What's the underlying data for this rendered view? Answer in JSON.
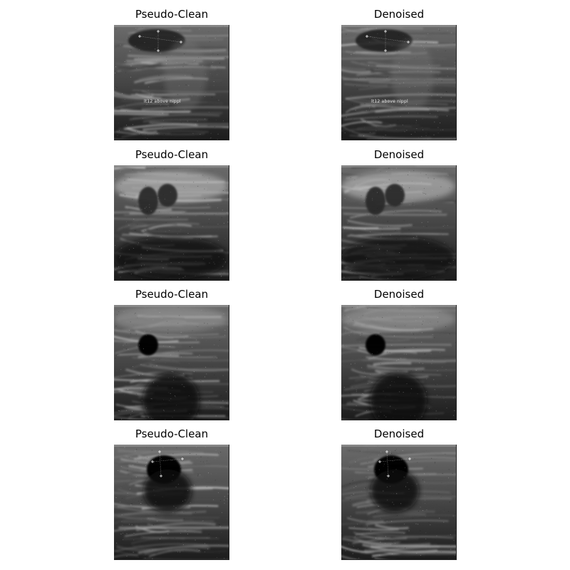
{
  "figure": {
    "panels": [
      {
        "title": "Pseudo-Clean",
        "row": 0,
        "col": 0,
        "image_kind": "ultrasound-1",
        "overlay_text": "lt12 above nippl"
      },
      {
        "title": "Denoised",
        "row": 0,
        "col": 1,
        "image_kind": "ultrasound-1",
        "overlay_text": "lt12 above nippl"
      },
      {
        "title": "Pseudo-Clean",
        "row": 1,
        "col": 0,
        "image_kind": "ultrasound-2",
        "overlay_text": ""
      },
      {
        "title": "Denoised",
        "row": 1,
        "col": 1,
        "image_kind": "ultrasound-2",
        "overlay_text": ""
      },
      {
        "title": "Pseudo-Clean",
        "row": 2,
        "col": 0,
        "image_kind": "ultrasound-3",
        "overlay_text": ""
      },
      {
        "title": "Denoised",
        "row": 2,
        "col": 1,
        "image_kind": "ultrasound-3",
        "overlay_text": ""
      },
      {
        "title": "Pseudo-Clean",
        "row": 3,
        "col": 0,
        "image_kind": "ultrasound-4",
        "overlay_text": ""
      },
      {
        "title": "Denoised",
        "row": 3,
        "col": 1,
        "image_kind": "ultrasound-4",
        "overlay_text": ""
      }
    ]
  }
}
